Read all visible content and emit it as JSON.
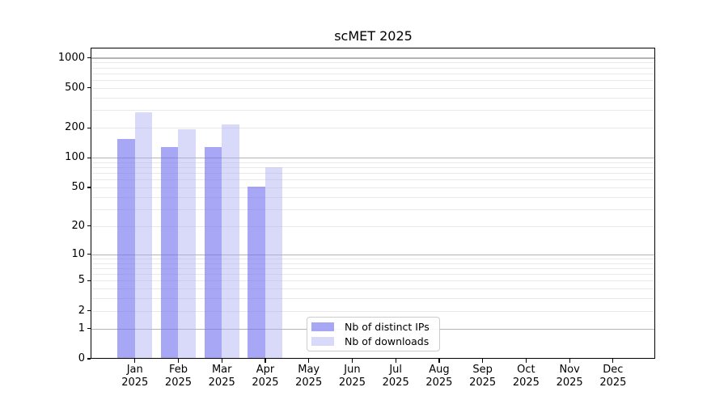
{
  "chart_data": {
    "type": "bar",
    "title": "scMET 2025",
    "categories": [
      "Jan 2025",
      "Feb 2025",
      "Mar 2025",
      "Apr 2025",
      "May 2025",
      "Jun 2025",
      "Jul 2025",
      "Aug 2025",
      "Sep 2025",
      "Oct 2025",
      "Nov 2025",
      "Dec 2025"
    ],
    "series": [
      {
        "name": "Nb of distinct IPs",
        "color": "rgba(113,113,239,0.62)",
        "values": [
          155,
          127,
          127,
          51,
          null,
          null,
          null,
          null,
          null,
          null,
          null,
          null
        ]
      },
      {
        "name": "Nb of downloads",
        "color": "rgba(171,171,244,0.45)",
        "values": [
          285,
          192,
          214,
          80,
          null,
          null,
          null,
          null,
          null,
          null,
          null,
          null
        ]
      }
    ],
    "y_axis": {
      "scale": "log1p",
      "ylim": [
        0,
        1240
      ],
      "ticks": [
        0,
        1,
        2,
        5,
        10,
        20,
        50,
        100,
        200,
        500,
        1000
      ],
      "major_gridlines": [
        1,
        10,
        100,
        1000
      ],
      "minor_gridlines": [
        2,
        3,
        4,
        5,
        6,
        7,
        8,
        9,
        20,
        30,
        40,
        50,
        60,
        70,
        80,
        90,
        200,
        300,
        400,
        500,
        600,
        700,
        800,
        900
      ]
    },
    "x_axis": {
      "tick_label_format": "month newline year"
    },
    "legend": {
      "position": "inside-lower-center",
      "items": [
        "Nb of distinct IPs",
        "Nb of downloads"
      ]
    },
    "grid": "horizontal"
  }
}
